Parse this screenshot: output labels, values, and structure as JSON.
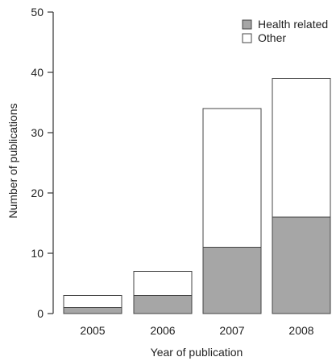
{
  "chart_data": {
    "type": "bar",
    "stacked": true,
    "categories": [
      "2005",
      "2006",
      "2007",
      "2008"
    ],
    "series": [
      {
        "name": "Health related",
        "values": [
          1,
          3,
          11,
          16
        ],
        "color": "#a6a6a6"
      },
      {
        "name": "Other",
        "values": [
          2,
          4,
          23,
          23
        ],
        "color": "#ffffff"
      }
    ],
    "xlabel": "Year of publication",
    "ylabel": "Number of publications",
    "ylim": [
      0,
      50
    ],
    "yticks": [
      0,
      10,
      20,
      30,
      40,
      50
    ],
    "grid": false,
    "legend": "top-right"
  }
}
